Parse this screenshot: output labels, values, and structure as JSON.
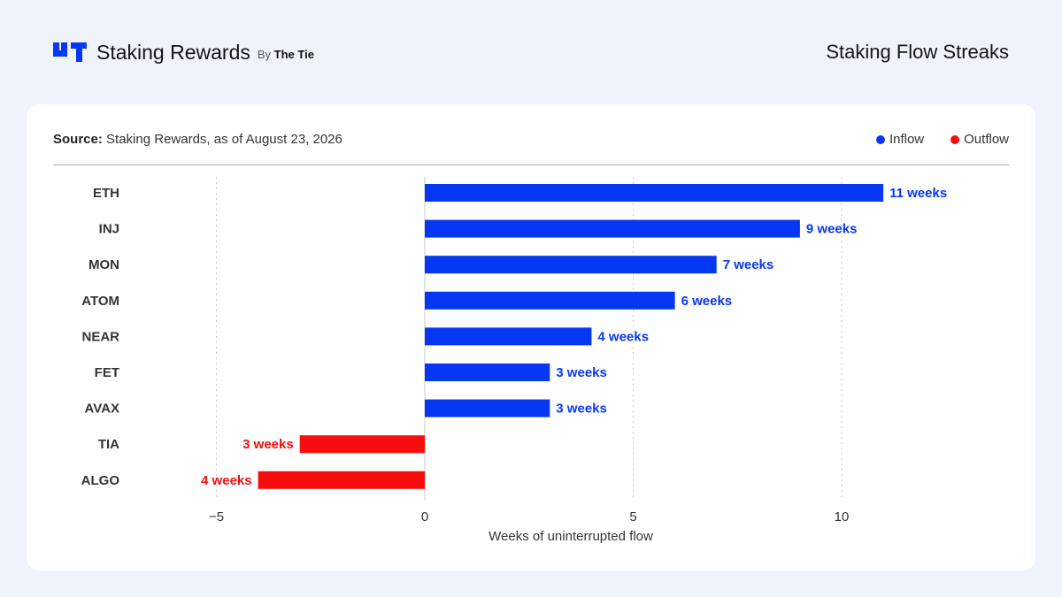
{
  "header": {
    "brand_name": "Staking Rewards",
    "brand_by_prefix": "By",
    "brand_by_company": "The Tie",
    "title": "Staking Flow Streaks"
  },
  "source": {
    "label": "Source:",
    "text": "Staking Rewards, as of August 23, 2026"
  },
  "legend": {
    "inflow": "Inflow",
    "outflow": "Outflow"
  },
  "colors": {
    "inflow": "#0637f2",
    "outflow": "#f70d0d",
    "background": "#eef3fc",
    "card": "#ffffff"
  },
  "chart_data": {
    "type": "bar",
    "orientation": "horizontal",
    "categories": [
      "ETH",
      "INJ",
      "MON",
      "ATOM",
      "NEAR",
      "FET",
      "AVAX",
      "TIA",
      "ALGO"
    ],
    "values": [
      11,
      9,
      7,
      6,
      4,
      3,
      3,
      -3,
      -4
    ],
    "value_labels": [
      "11 weeks",
      "9 weeks",
      "7 weeks",
      "6 weeks",
      "4 weeks",
      "3 weeks",
      "3 weeks",
      "3 weeks",
      "4 weeks"
    ],
    "flow": [
      "Inflow",
      "Inflow",
      "Inflow",
      "Inflow",
      "Inflow",
      "Inflow",
      "Inflow",
      "Outflow",
      "Outflow"
    ],
    "xlabel": "Weeks of uninterrupted flow",
    "ylabel": "",
    "xlim": [
      -9,
      14
    ],
    "xticks": [
      -5,
      0,
      5,
      10
    ],
    "xtick_labels": [
      "−5",
      "0",
      "5",
      "10"
    ],
    "grid": "vertical dotted",
    "legend_position": "top-right"
  }
}
